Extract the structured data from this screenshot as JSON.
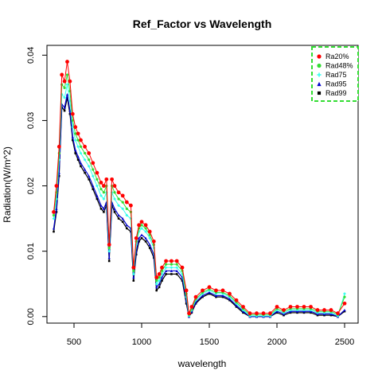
{
  "chart_data": {
    "type": "scatter",
    "title": "Ref_Factor vs Wavelength",
    "xlabel": "wavelength",
    "ylabel": "Radiation(W/m^2)",
    "xlim": [
      300,
      2600
    ],
    "ylim": [
      -0.001,
      0.0415
    ],
    "xticks": [
      500,
      1000,
      1500,
      2000,
      2500
    ],
    "xtick_labels": [
      "500",
      "1000",
      "1500",
      "2000",
      "2500"
    ],
    "yticks": [
      0.0,
      0.01,
      0.02,
      0.03,
      0.04
    ],
    "ytick_labels": [
      "0.00",
      "0.01",
      "0.02",
      "0.03",
      "0.04"
    ],
    "grid": false,
    "legend": {
      "placement": "top-right",
      "border": "dashed",
      "border_color": "#33dd33"
    },
    "x": [
      350,
      370,
      390,
      410,
      430,
      450,
      470,
      490,
      510,
      530,
      550,
      580,
      610,
      640,
      670,
      700,
      720,
      740,
      760,
      780,
      800,
      830,
      860,
      890,
      920,
      940,
      960,
      980,
      1000,
      1030,
      1060,
      1090,
      1110,
      1130,
      1150,
      1180,
      1220,
      1260,
      1300,
      1330,
      1350,
      1370,
      1400,
      1450,
      1500,
      1550,
      1600,
      1650,
      1700,
      1750,
      1800,
      1850,
      1900,
      1950,
      2000,
      2050,
      2100,
      2150,
      2200,
      2250,
      2300,
      2350,
      2400,
      2450,
      2500
    ],
    "series": [
      {
        "name": "Ra20%",
        "color": "#ff0000",
        "marker": "circle",
        "values": [
          0.016,
          0.02,
          0.026,
          0.037,
          0.036,
          0.039,
          0.036,
          0.031,
          0.029,
          0.028,
          0.027,
          0.026,
          0.025,
          0.0235,
          0.022,
          0.0205,
          0.02,
          0.021,
          0.011,
          0.021,
          0.02,
          0.019,
          0.0185,
          0.0175,
          0.017,
          0.0075,
          0.012,
          0.014,
          0.0145,
          0.014,
          0.013,
          0.0115,
          0.006,
          0.0065,
          0.0075,
          0.0085,
          0.0085,
          0.0085,
          0.0075,
          0.004,
          0.0005,
          0.0015,
          0.003,
          0.004,
          0.0045,
          0.004,
          0.004,
          0.0035,
          0.0025,
          0.0015,
          0.0005,
          0.0005,
          0.0005,
          0.0005,
          0.0015,
          0.001,
          0.0015,
          0.0015,
          0.0015,
          0.0015,
          0.001,
          0.001,
          0.001,
          0.0005,
          0.002
        ]
      },
      {
        "name": "Rad48%",
        "color": "#33dd33",
        "marker": "circle",
        "values": [
          0.0155,
          0.019,
          0.025,
          0.0355,
          0.035,
          0.037,
          0.0345,
          0.03,
          0.028,
          0.027,
          0.026,
          0.025,
          0.024,
          0.0225,
          0.021,
          0.0195,
          0.019,
          0.02,
          0.0105,
          0.02,
          0.019,
          0.018,
          0.0175,
          0.0165,
          0.016,
          0.007,
          0.0115,
          0.0135,
          0.014,
          0.0135,
          0.0125,
          0.011,
          0.0055,
          0.006,
          0.007,
          0.008,
          0.008,
          0.008,
          0.007,
          0.0035,
          0.0003,
          0.0012,
          0.0027,
          0.0037,
          0.0042,
          0.0037,
          0.0037,
          0.0032,
          0.0022,
          0.0012,
          0.0003,
          0.0003,
          0.0003,
          0.0003,
          0.0012,
          0.0008,
          0.0012,
          0.0012,
          0.0012,
          0.0012,
          0.0008,
          0.0008,
          0.0008,
          0.0003,
          0.003
        ]
      },
      {
        "name": "Rad75",
        "color": "#33ffee",
        "marker": "plus",
        "values": [
          0.015,
          0.018,
          0.024,
          0.034,
          0.0335,
          0.0355,
          0.033,
          0.029,
          0.027,
          0.026,
          0.025,
          0.024,
          0.023,
          0.0215,
          0.02,
          0.0185,
          0.018,
          0.019,
          0.01,
          0.019,
          0.018,
          0.017,
          0.0165,
          0.0155,
          0.015,
          0.0065,
          0.011,
          0.013,
          0.0135,
          0.013,
          0.012,
          0.0105,
          0.005,
          0.0055,
          0.0065,
          0.0075,
          0.0075,
          0.0075,
          0.0065,
          0.003,
          0.0001,
          0.001,
          0.0025,
          0.0035,
          0.004,
          0.0035,
          0.0035,
          0.003,
          0.002,
          0.001,
          0.0001,
          0.0001,
          0.0001,
          0.0001,
          0.001,
          0.0006,
          0.001,
          0.001,
          0.001,
          0.001,
          0.0006,
          0.0006,
          0.0006,
          0.0001,
          0.0035
        ]
      },
      {
        "name": "Rad95",
        "color": "#0000cc",
        "marker": "triangle",
        "values": [
          0.0135,
          0.0165,
          0.022,
          0.0325,
          0.032,
          0.034,
          0.0315,
          0.0275,
          0.0255,
          0.0245,
          0.0235,
          0.0225,
          0.0215,
          0.02,
          0.0185,
          0.017,
          0.0165,
          0.0175,
          0.009,
          0.0175,
          0.0165,
          0.0155,
          0.015,
          0.014,
          0.0135,
          0.006,
          0.01,
          0.012,
          0.0125,
          0.012,
          0.011,
          0.0095,
          0.0045,
          0.005,
          0.006,
          0.007,
          0.007,
          0.007,
          0.006,
          0.0025,
          0.0,
          0.0008,
          0.0022,
          0.0032,
          0.0037,
          0.0032,
          0.0032,
          0.0027,
          0.0017,
          0.0008,
          0.0,
          0.0,
          0.0,
          0.0,
          0.0008,
          0.0004,
          0.0008,
          0.0008,
          0.0008,
          0.0008,
          0.0004,
          0.0004,
          0.0004,
          0.0,
          0.001
        ]
      },
      {
        "name": "Rad99",
        "color": "#000000",
        "marker": "square",
        "values": [
          0.013,
          0.016,
          0.0215,
          0.032,
          0.0315,
          0.0335,
          0.031,
          0.027,
          0.025,
          0.024,
          0.023,
          0.022,
          0.021,
          0.0195,
          0.018,
          0.0165,
          0.016,
          0.017,
          0.0085,
          0.017,
          0.016,
          0.015,
          0.0145,
          0.0135,
          0.013,
          0.0055,
          0.0095,
          0.0115,
          0.012,
          0.0115,
          0.0105,
          0.009,
          0.004,
          0.0045,
          0.0055,
          0.0065,
          0.0065,
          0.0065,
          0.0055,
          0.002,
          0.0,
          0.0006,
          0.002,
          0.003,
          0.0035,
          0.003,
          0.003,
          0.0025,
          0.0015,
          0.0006,
          0.0,
          0.0,
          0.0,
          0.0,
          0.0006,
          0.0002,
          0.0006,
          0.0006,
          0.0006,
          0.0006,
          0.0002,
          0.0002,
          0.0002,
          0.0,
          0.0008
        ]
      }
    ]
  }
}
